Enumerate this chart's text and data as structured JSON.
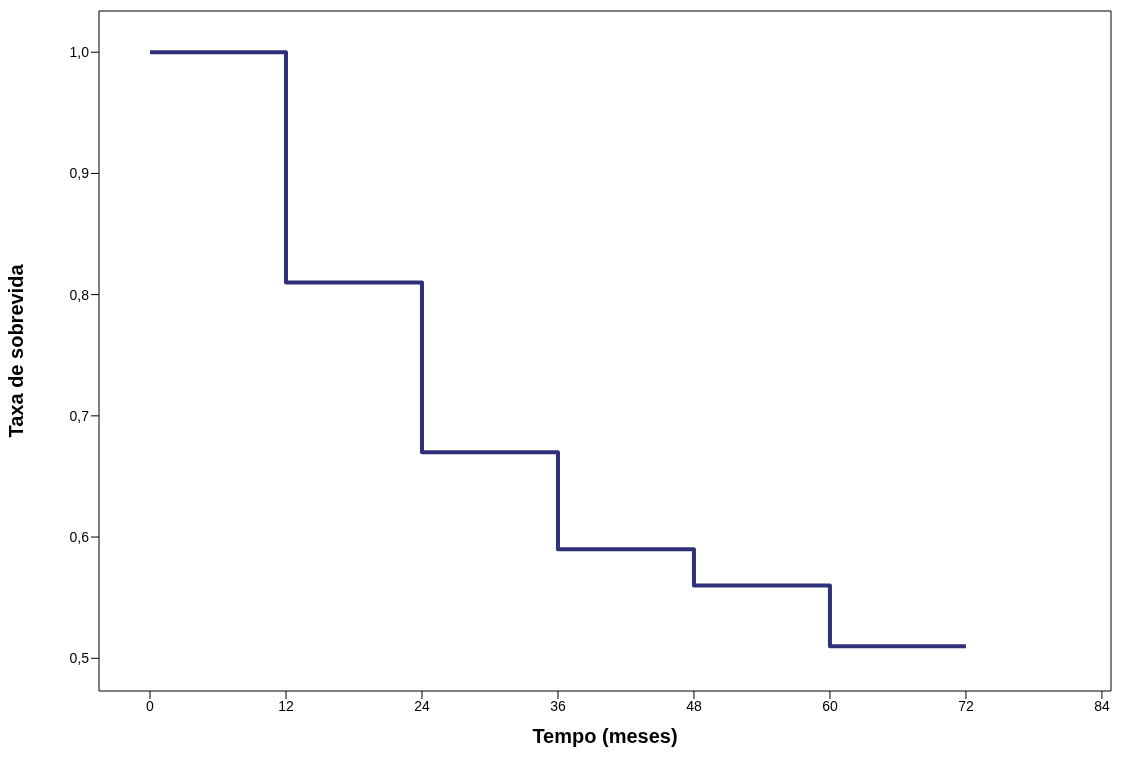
{
  "chart_data": {
    "type": "step",
    "xlabel": "Tempo (meses)",
    "ylabel": "Taxa de sobrevida",
    "x": [
      0,
      12,
      24,
      36,
      48,
      60,
      72
    ],
    "series": [
      {
        "color": "#2e3079",
        "values": [
          1.0,
          0.81,
          0.67,
          0.59,
          0.56,
          0.51,
          0.51
        ]
      }
    ],
    "xlim": [
      -4.5,
      84.8
    ],
    "xticks": [
      0,
      12,
      24,
      36,
      48,
      60,
      72,
      84
    ],
    "ylim": [
      0.473,
      1.034
    ],
    "yticks": [
      {
        "value": 0.5,
        "label": "0,5"
      },
      {
        "value": 0.6,
        "label": "0,6"
      },
      {
        "value": 0.7,
        "label": "0,7"
      },
      {
        "value": 0.8,
        "label": "0,8"
      },
      {
        "value": 0.9,
        "label": "0,9"
      },
      {
        "value": 1.0,
        "label": "1,0"
      }
    ],
    "grid": false,
    "legend": false
  }
}
